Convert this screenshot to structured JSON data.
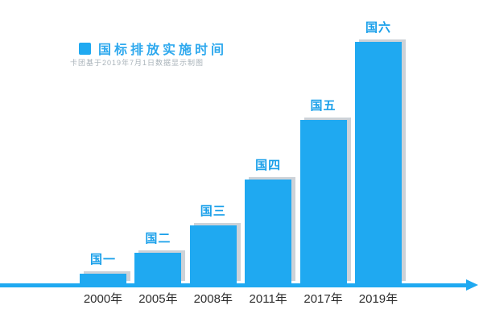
{
  "colors": {
    "bar_fill": "#1FA9F1",
    "bar_shadow": "#CDD2D8",
    "axis": "#1FA9F1",
    "title_text": "#2FA9EE",
    "subtitle_text": "#A8B2B9",
    "bar_label_text": "#1AA0EA",
    "x_label_text": "#2E2E2E",
    "background": "#FFFFFF"
  },
  "legend": {
    "title": "国标排放实施时间",
    "subtitle": "卡团基于2019年7月1日数据显示制图"
  },
  "chart_data": {
    "type": "bar",
    "title": "国标排放实施时间",
    "subtitle": "卡团基于2019年7月1日数据显示制图",
    "categories": [
      "2000年",
      "2005年",
      "2008年",
      "2011年",
      "2017年",
      "2019年"
    ],
    "series": [
      {
        "name": "国标排放实施时间",
        "bar_labels": [
          "国一",
          "国二",
          "国三",
          "国四",
          "国五",
          "国六"
        ],
        "values": [
          12,
          38,
          72,
          129,
          203,
          300
        ]
      }
    ],
    "value_unit": "relative-bar-height-px",
    "xlabel": "",
    "ylabel": "",
    "y_axis_visible": false,
    "x_axis_visible": true,
    "x_axis_arrow": "right",
    "grid": false,
    "legend_position": "top-left",
    "bar_color": "#1FA9F1"
  }
}
